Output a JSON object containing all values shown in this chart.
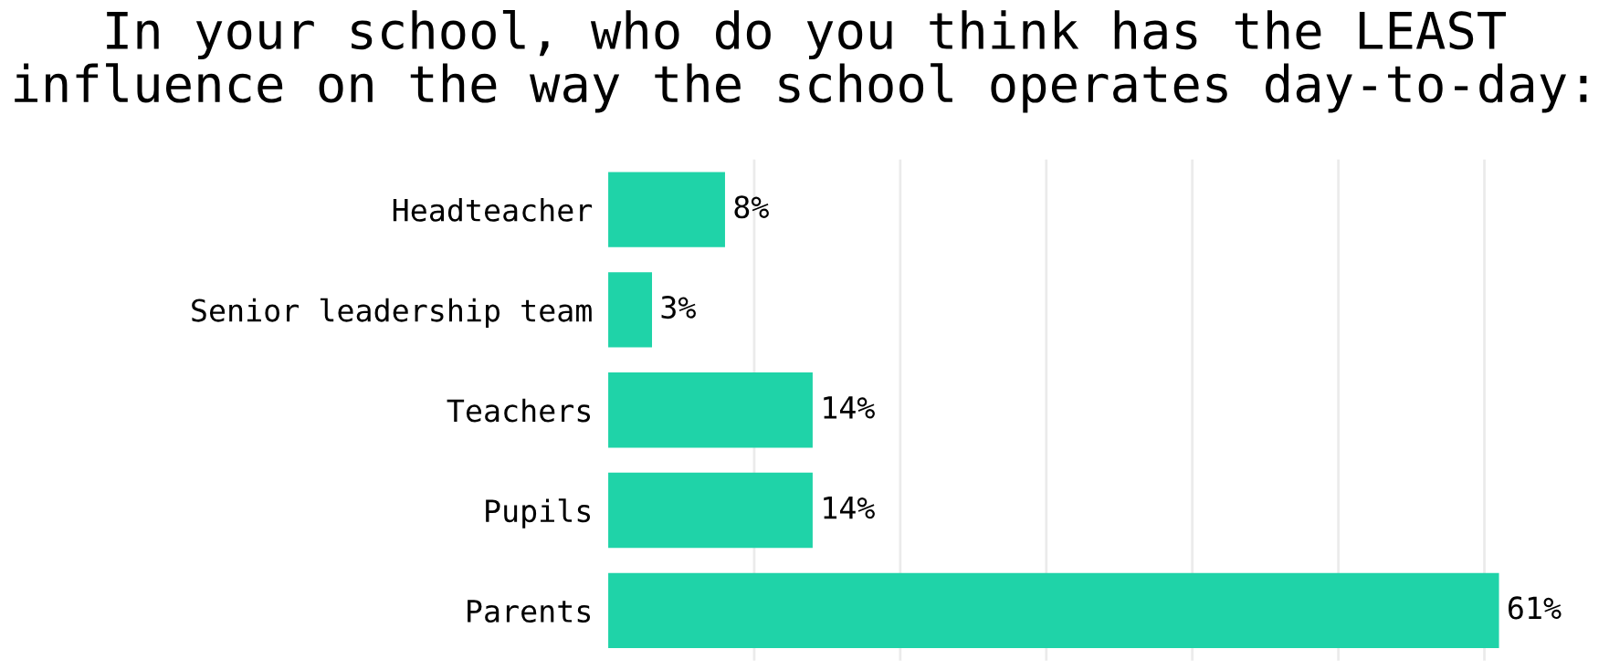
{
  "chart_data": {
    "type": "bar",
    "orientation": "horizontal",
    "title": "In your school, who do you think has the LEAST\ninfluence on the way the school operates day-to-day:",
    "categories": [
      "Headteacher",
      "Senior leadership team",
      "Teachers",
      "Pupils",
      "Parents"
    ],
    "values": [
      8,
      3,
      14,
      14,
      61
    ],
    "color": "#1fd3a8",
    "value_labels": [
      "8%",
      "3%",
      "14%",
      "14%",
      "61%"
    ],
    "xticks": [
      {
        "value": 10,
        "label": null
      },
      {
        "value": 20,
        "label": null
      },
      {
        "value": 30,
        "label": null
      },
      {
        "value": 40,
        "label": null
      },
      {
        "value": 50,
        "label": null
      },
      {
        "value": 60,
        "label": null
      }
    ],
    "grid": "x",
    "tick_labels": "y"
  }
}
